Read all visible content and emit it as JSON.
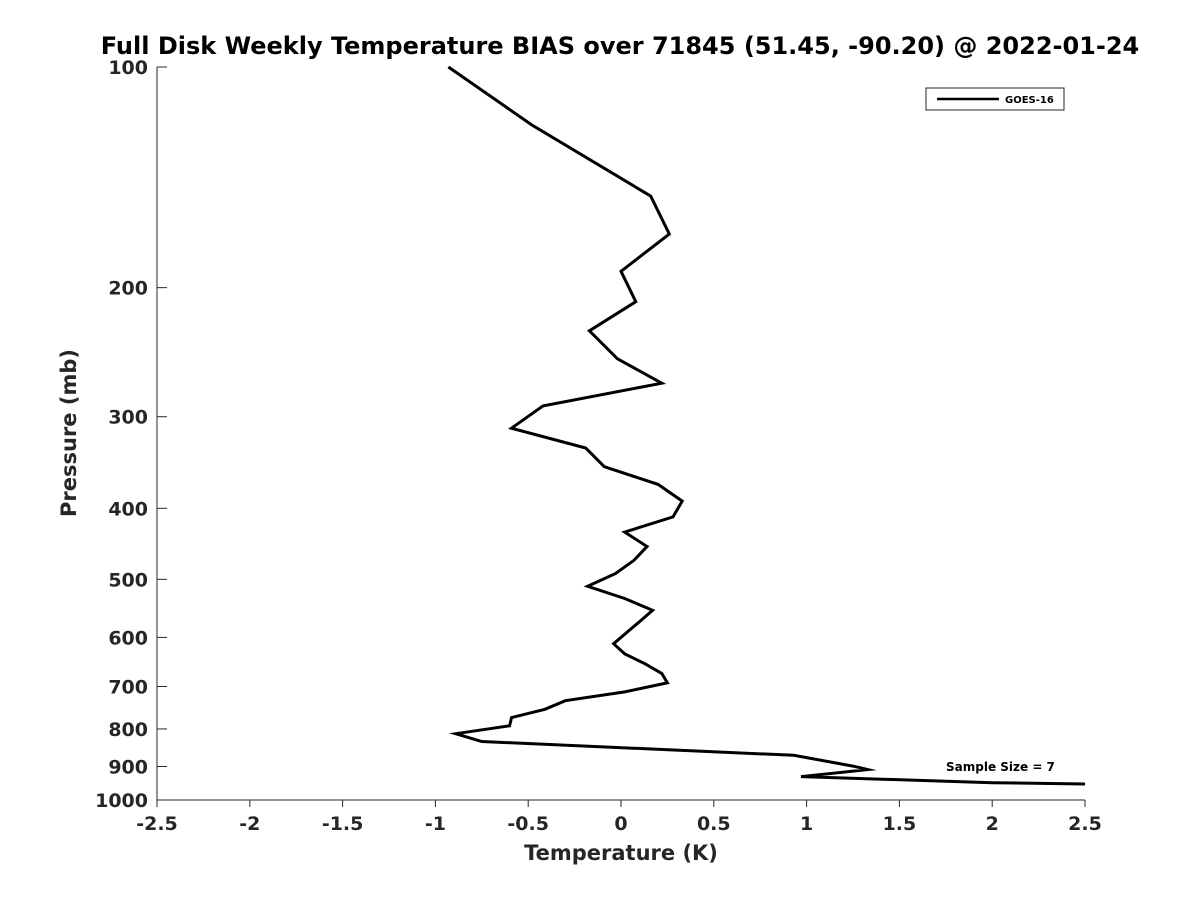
{
  "chart_data": {
    "type": "line",
    "title": "Full Disk Weekly Temperature BIAS over 71845 (51.45, -90.20) @ 2022-01-24",
    "xlabel": "Temperature (K)",
    "ylabel": "Pressure (mb)",
    "xlim": [
      -2.5,
      2.5
    ],
    "ylim": [
      1000,
      100
    ],
    "y_scale": "log",
    "y_reversed": true,
    "grid": false,
    "legend_position": "top-right",
    "x_ticks": [
      -2.5,
      -2,
      -1.5,
      -1,
      -0.5,
      0,
      0.5,
      1,
      1.5,
      2,
      2.5
    ],
    "x_tick_labels": [
      "-2.5",
      "-2",
      "-1.5",
      "-1",
      "-0.5",
      "0",
      "0.5",
      "1",
      "1.5",
      "2",
      "2.5"
    ],
    "y_ticks": [
      100,
      200,
      300,
      400,
      500,
      600,
      700,
      800,
      900,
      1000
    ],
    "y_tick_labels": [
      "100",
      "200",
      "300",
      "400",
      "500",
      "600",
      "700",
      "800",
      "900",
      "1000"
    ],
    "annotation": "Sample Size = 7",
    "series": [
      {
        "name": "GOES-16",
        "color": "#000000",
        "points": [
          {
            "x": -0.93,
            "y": 100
          },
          {
            "x": -0.48,
            "y": 120
          },
          {
            "x": 0.16,
            "y": 150
          },
          {
            "x": 0.26,
            "y": 169
          },
          {
            "x": 0.0,
            "y": 190
          },
          {
            "x": 0.08,
            "y": 209
          },
          {
            "x": -0.17,
            "y": 229
          },
          {
            "x": -0.02,
            "y": 250
          },
          {
            "x": 0.22,
            "y": 270
          },
          {
            "x": -0.42,
            "y": 290
          },
          {
            "x": -0.59,
            "y": 311
          },
          {
            "x": -0.19,
            "y": 331
          },
          {
            "x": -0.09,
            "y": 351
          },
          {
            "x": 0.2,
            "y": 371
          },
          {
            "x": 0.33,
            "y": 391
          },
          {
            "x": 0.28,
            "y": 411
          },
          {
            "x": 0.02,
            "y": 431
          },
          {
            "x": 0.14,
            "y": 451
          },
          {
            "x": 0.07,
            "y": 471
          },
          {
            "x": -0.03,
            "y": 491
          },
          {
            "x": -0.18,
            "y": 511
          },
          {
            "x": 0.02,
            "y": 531
          },
          {
            "x": 0.17,
            "y": 551
          },
          {
            "x": 0.1,
            "y": 571
          },
          {
            "x": 0.03,
            "y": 591
          },
          {
            "x": -0.04,
            "y": 612
          },
          {
            "x": 0.02,
            "y": 632
          },
          {
            "x": 0.13,
            "y": 652
          },
          {
            "x": 0.22,
            "y": 672
          },
          {
            "x": 0.25,
            "y": 692
          },
          {
            "x": 0.02,
            "y": 712
          },
          {
            "x": -0.3,
            "y": 732
          },
          {
            "x": -0.41,
            "y": 752
          },
          {
            "x": -0.59,
            "y": 772
          },
          {
            "x": -0.6,
            "y": 792
          },
          {
            "x": -0.89,
            "y": 812
          },
          {
            "x": -0.75,
            "y": 832
          },
          {
            "x": 0.93,
            "y": 869
          },
          {
            "x": 1.25,
            "y": 899
          },
          {
            "x": 1.33,
            "y": 909
          },
          {
            "x": 0.97,
            "y": 929
          },
          {
            "x": 2.0,
            "y": 947
          },
          {
            "x": 2.5,
            "y": 951
          }
        ]
      }
    ]
  }
}
